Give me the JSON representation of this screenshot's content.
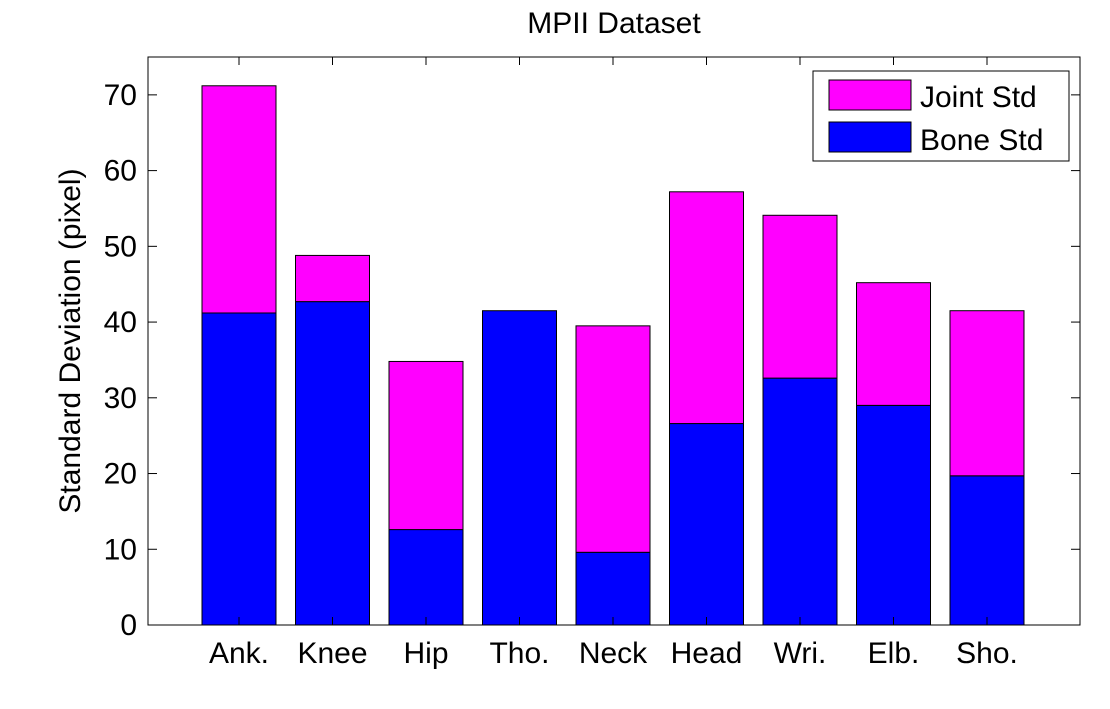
{
  "chart_data": {
    "type": "bar",
    "stacked": true,
    "title": "MPII Dataset",
    "xlabel": "",
    "ylabel": "Standard Deviation (pixel)",
    "categories": [
      "Ank.",
      "Knee",
      "Hip",
      "Tho.",
      "Neck",
      "Head",
      "Wri.",
      "Elb.",
      "Sho."
    ],
    "series": [
      {
        "name": "Bone Std",
        "color": "#0000ff",
        "values": [
          41.2,
          42.7,
          12.6,
          41.5,
          9.6,
          26.6,
          32.6,
          29.0,
          19.7
        ]
      },
      {
        "name": "Joint Std",
        "color": "#ff00ff",
        "values": [
          30.0,
          6.1,
          22.2,
          0,
          29.9,
          30.6,
          21.5,
          16.2,
          21.8
        ]
      }
    ],
    "totals": [
      71.2,
      48.8,
      34.8,
      41.5,
      39.5,
      57.2,
      54.1,
      45.2,
      41.5
    ],
    "ylim": [
      0,
      75
    ],
    "yticks": [
      0,
      10,
      20,
      30,
      40,
      50,
      60,
      70
    ],
    "grid": false,
    "legend": {
      "position": "top-right",
      "order": [
        "Joint Std",
        "Bone Std"
      ]
    }
  }
}
